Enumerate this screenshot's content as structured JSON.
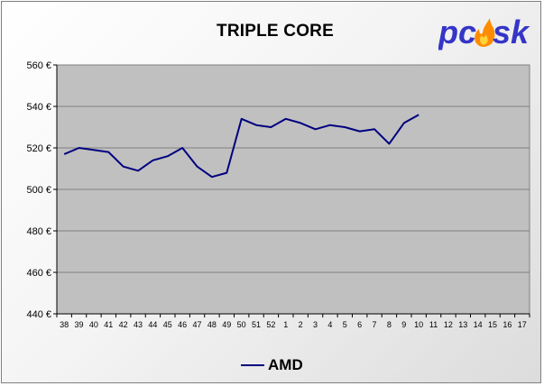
{
  "logo": {
    "text_left": "pc",
    "text_right": "sk",
    "colors": {
      "text": "#3535c8",
      "flame": "#ff8c00"
    }
  },
  "chart_data": {
    "type": "line",
    "title": "TRIPLE CORE",
    "x": [
      "38",
      "39",
      "40",
      "41",
      "42",
      "43",
      "44",
      "45",
      "46",
      "47",
      "48",
      "49",
      "50",
      "51",
      "52",
      "1",
      "2",
      "3",
      "4",
      "5",
      "6",
      "7",
      "8",
      "9",
      "10",
      "11",
      "12",
      "13",
      "14",
      "15",
      "16",
      "17"
    ],
    "series": [
      {
        "name": "AMD",
        "color": "#000080",
        "values": [
          517,
          520,
          519,
          518,
          511,
          509,
          514,
          516,
          520,
          511,
          506,
          508,
          534,
          531,
          530,
          534,
          532,
          529,
          531,
          530,
          528,
          529,
          522,
          532,
          536,
          null,
          null,
          null,
          null,
          null,
          null,
          null
        ]
      }
    ],
    "ylim": [
      440,
      560
    ],
    "yticks": [
      440,
      460,
      480,
      500,
      520,
      540,
      560
    ],
    "ytick_labels": [
      "440 €",
      "460 €",
      "480 €",
      "500 €",
      "520 €",
      "540 €",
      "560 €"
    ],
    "grid": true,
    "legend": "bottom",
    "colors": {
      "plot_bg": "#c0c0c0",
      "grid": "#808080"
    }
  }
}
